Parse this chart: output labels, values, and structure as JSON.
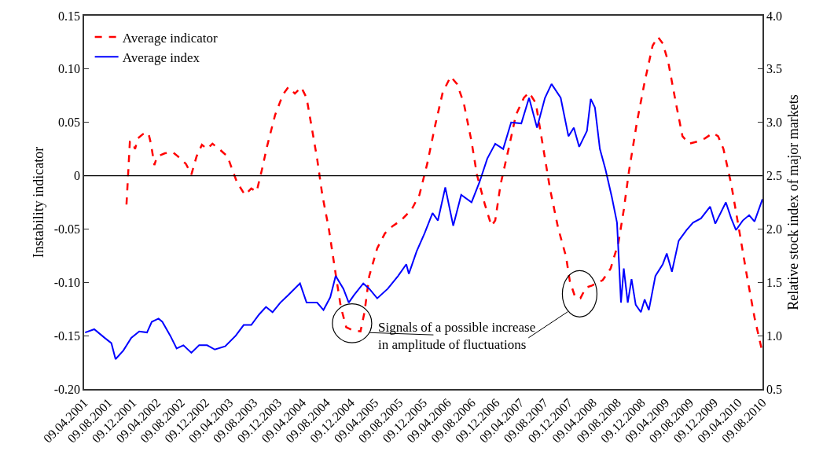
{
  "chart_data": {
    "type": "line",
    "xlabel": null,
    "ylabel": "Instability indicator",
    "y2label": "Relative stock index of major markets",
    "legend": "top left",
    "marker": "none",
    "xlim": [
      "2001-04-09",
      "2010-08-09"
    ],
    "ylim": [
      -0.2,
      0.15
    ],
    "y2lim": [
      0.5,
      4.0
    ],
    "yticks": [
      {
        "value": -0.2,
        "label": "-0.20"
      },
      {
        "value": -0.15,
        "label": "-0.15"
      },
      {
        "value": -0.1,
        "label": "-0.10"
      },
      {
        "value": -0.05,
        "label": "-0.05"
      },
      0,
      {
        "value": 0.05,
        "label": "0.05"
      },
      {
        "value": 0.1,
        "label": "0.10"
      },
      {
        "value": 0.15,
        "label": "0.15"
      }
    ],
    "y2ticks": [
      0.5,
      {
        "value": 1,
        "label": "1.0"
      },
      1.5,
      {
        "value": 2,
        "label": "2.0"
      },
      2.5,
      {
        "value": 3,
        "label": "3.0"
      },
      3.5,
      {
        "value": 4,
        "label": "4.0"
      }
    ],
    "xticks": [
      {
        "value": "2001-04-09",
        "label": "09.04.2001"
      },
      {
        "value": "2001-08-09",
        "label": "09.08.2001"
      },
      {
        "value": "2001-12-09",
        "label": "09.12.2001"
      },
      {
        "value": "2002-04-09",
        "label": "09.04.2002"
      },
      {
        "value": "2002-08-09",
        "label": "09.08.2002"
      },
      {
        "value": "2002-12-09",
        "label": "09.12.2002"
      },
      {
        "value": "2003-04-09",
        "label": "09.04.2003"
      },
      {
        "value": "2003-08-09",
        "label": "09.08.2003"
      },
      {
        "value": "2003-12-09",
        "label": "09.12.2003"
      },
      {
        "value": "2004-04-09",
        "label": "09.04.2004"
      },
      {
        "value": "2004-08-09",
        "label": "09.08.2004"
      },
      {
        "value": "2004-12-09",
        "label": "09.12.2004"
      },
      {
        "value": "2005-04-09",
        "label": "09.04.2005"
      },
      {
        "value": "2005-08-09",
        "label": "09.08.2005"
      },
      {
        "value": "2005-12-09",
        "label": "09.12.2005"
      },
      {
        "value": "2006-04-09",
        "label": "09.04.2006"
      },
      {
        "value": "2006-08-09",
        "label": "09.08.2006"
      },
      {
        "value": "2006-12-09",
        "label": "09.12.2006"
      },
      {
        "value": "2007-04-09",
        "label": "09.04.2007"
      },
      {
        "value": "2007-08-09",
        "label": "09.08.2007"
      },
      {
        "value": "2007-12-09",
        "label": "09.12.2007"
      },
      {
        "value": "2008-04-09",
        "label": "09.04.2008"
      },
      {
        "value": "2008-08-09",
        "label": "09.08.2008"
      },
      {
        "value": "2008-12-09",
        "label": "09.12.2008"
      },
      {
        "value": "2009-04-09",
        "label": "09.04.2009"
      },
      {
        "value": "2009-08-09",
        "label": "09.08.2009"
      },
      {
        "value": "2009-12-09",
        "label": "09.12.2009"
      },
      {
        "value": "2010-04-09",
        "label": "09.04.2010"
      },
      {
        "value": "2010-08-09",
        "label": "09.08.2010"
      }
    ],
    "ref_lines": [
      {
        "axis": "y",
        "value": 0,
        "color": "#000000",
        "line_style": "solid"
      }
    ],
    "annotations": [
      "Signals of a possible increase\nin amplitude of fluctuations"
    ],
    "series": [
      {
        "name": "Average indicator",
        "color": "#ff0000",
        "line_style": "dashed",
        "axis": "y",
        "x": [
          "2001-11-08",
          "2001-11-25",
          "2001-12-08",
          "2001-12-21",
          "2002-01-04",
          "2002-01-30",
          "2002-02-26",
          "2002-03-11",
          "2002-03-28",
          "2002-04-11",
          "2002-05-20",
          "2002-06-29",
          "2002-07-25",
          "2002-09-03",
          "2002-09-30",
          "2002-10-26",
          "2002-11-22",
          "2002-12-18",
          "2003-01-14",
          "2003-02-23",
          "2003-03-31",
          "2003-04-21",
          "2003-05-17",
          "2003-06-26",
          "2003-07-28",
          "2003-08-24",
          "2003-09-20",
          "2003-10-16",
          "2003-11-25",
          "2004-01-03",
          "2004-01-30",
          "2004-03-03",
          "2004-04-04",
          "2004-05-01",
          "2004-05-27",
          "2004-06-23",
          "2004-07-19",
          "2004-08-21",
          "2004-09-24",
          "2004-10-20",
          "2004-11-16",
          "2004-12-18",
          "2005-01-27",
          "2005-02-16",
          "2005-03-12",
          "2005-04-21",
          "2005-05-30",
          "2005-07-09",
          "2005-08-18",
          "2005-10-10",
          "2005-11-19",
          "2005-12-28",
          "2006-02-06",
          "2006-03-16",
          "2006-04-25",
          "2006-05-27",
          "2006-06-30",
          "2006-08-08",
          "2006-09-04",
          "2006-10-14",
          "2006-11-16",
          "2006-12-05",
          "2007-01-01",
          "2007-02-10",
          "2007-03-19",
          "2007-04-28",
          "2007-05-24",
          "2007-06-27",
          "2007-07-29",
          "2007-09-07",
          "2007-10-17",
          "2007-11-26",
          "2007-12-15",
          "2008-01-11",
          "2008-02-06",
          "2008-03-04",
          "2008-04-04",
          "2008-05-28",
          "2008-07-07",
          "2008-08-15",
          "2008-09-11",
          "2008-10-07",
          "2008-11-16",
          "2008-12-25",
          "2009-02-03",
          "2009-03-02",
          "2009-03-26",
          "2009-04-22",
          "2009-05-31",
          "2009-07-03",
          "2009-08-05",
          "2009-09-15",
          "2009-10-24",
          "2009-12-03",
          "2009-12-29",
          "2010-01-25",
          "2010-03-05",
          "2010-04-12",
          "2010-05-21",
          "2010-06-30",
          "2010-08-09"
        ],
        "values": [
          -0.027,
          0.032,
          0.032,
          0.025,
          0.035,
          0.039,
          0.04,
          0.03,
          0.01,
          0.018,
          0.021,
          0.022,
          0.018,
          0.011,
          0.001,
          0.018,
          0.029,
          0.025,
          0.03,
          0.024,
          0.018,
          0.007,
          -0.006,
          -0.018,
          -0.012,
          -0.015,
          0.006,
          0.028,
          0.057,
          0.076,
          0.083,
          0.077,
          0.083,
          0.073,
          0.045,
          0.016,
          -0.018,
          -0.05,
          -0.092,
          -0.123,
          -0.142,
          -0.145,
          -0.146,
          -0.128,
          -0.094,
          -0.068,
          -0.054,
          -0.047,
          -0.042,
          -0.032,
          -0.018,
          0.011,
          0.047,
          0.078,
          0.093,
          0.086,
          0.068,
          0.032,
          0.001,
          -0.027,
          -0.047,
          -0.042,
          -0.008,
          0.025,
          0.057,
          0.073,
          0.078,
          0.068,
          0.032,
          -0.013,
          -0.049,
          -0.076,
          -0.099,
          -0.114,
          -0.115,
          -0.105,
          -0.103,
          -0.098,
          -0.087,
          -0.063,
          -0.032,
          0.004,
          0.05,
          0.088,
          0.122,
          0.13,
          0.124,
          0.107,
          0.068,
          0.037,
          0.03,
          0.032,
          0.035,
          0.04,
          0.037,
          0.025,
          -0.008,
          -0.049,
          -0.092,
          -0.133,
          -0.166
        ]
      },
      {
        "name": "Average index",
        "color": "#0000ff",
        "line_style": "solid",
        "axis": "y2",
        "x": [
          "2001-04-14",
          "2001-05-30",
          "2001-07-21",
          "2001-08-24",
          "2001-09-14",
          "2001-10-23",
          "2001-12-02",
          "2002-01-11",
          "2002-02-19",
          "2002-03-15",
          "2002-04-18",
          "2002-05-07",
          "2002-06-16",
          "2002-07-18",
          "2002-08-21",
          "2002-09-30",
          "2002-11-08",
          "2002-12-18",
          "2003-01-26",
          "2003-03-19",
          "2003-05-11",
          "2003-06-20",
          "2003-07-28",
          "2003-09-06",
          "2003-10-10",
          "2003-11-12",
          "2003-12-21",
          "2004-01-30",
          "2004-03-29",
          "2004-05-01",
          "2004-06-23",
          "2004-07-25",
          "2004-08-28",
          "2004-09-24",
          "2004-11-02",
          "2004-11-29",
          "2004-12-25",
          "2005-02-10",
          "2005-03-12",
          "2005-04-21",
          "2005-06-13",
          "2005-08-04",
          "2005-09-14",
          "2005-09-27",
          "2005-11-05",
          "2005-12-15",
          "2006-01-24",
          "2006-02-20",
          "2006-03-29",
          "2006-05-08",
          "2006-06-17",
          "2006-08-08",
          "2006-09-17",
          "2006-10-26",
          "2006-12-05",
          "2007-01-14",
          "2007-02-23",
          "2007-04-15",
          "2007-05-24",
          "2007-07-03",
          "2007-08-12",
          "2007-09-14",
          "2007-10-30",
          "2007-12-08",
          "2008-01-04",
          "2008-01-31",
          "2008-03-10",
          "2008-03-29",
          "2008-04-19",
          "2008-05-14",
          "2008-06-11",
          "2008-07-13",
          "2008-08-08",
          "2008-08-28",
          "2008-09-11",
          "2008-10-01",
          "2008-10-20",
          "2008-11-10",
          "2008-12-06",
          "2008-12-25",
          "2009-01-15",
          "2009-02-17",
          "2009-03-26",
          "2009-04-15",
          "2009-05-11",
          "2009-06-14",
          "2009-07-23",
          "2009-08-25",
          "2009-10-04",
          "2009-11-19",
          "2009-12-15",
          "2010-02-06",
          "2010-03-05",
          "2010-03-29",
          "2010-05-02",
          "2010-06-03",
          "2010-06-30",
          "2010-08-09"
        ],
        "values": [
          1.03,
          1.06,
          0.98,
          0.93,
          0.78,
          0.86,
          0.98,
          1.04,
          1.03,
          1.13,
          1.16,
          1.13,
          1.0,
          0.88,
          0.91,
          0.84,
          0.91,
          0.91,
          0.87,
          0.9,
          1.0,
          1.1,
          1.1,
          1.2,
          1.27,
          1.22,
          1.31,
          1.38,
          1.49,
          1.31,
          1.31,
          1.24,
          1.36,
          1.56,
          1.44,
          1.31,
          1.38,
          1.49,
          1.44,
          1.35,
          1.44,
          1.56,
          1.67,
          1.58,
          1.79,
          1.96,
          2.15,
          2.08,
          2.39,
          2.03,
          2.32,
          2.25,
          2.44,
          2.66,
          2.8,
          2.75,
          3.0,
          2.99,
          3.23,
          2.95,
          3.23,
          3.36,
          3.23,
          2.87,
          2.95,
          2.77,
          2.92,
          3.22,
          3.14,
          2.75,
          2.56,
          2.3,
          2.06,
          1.31,
          1.63,
          1.31,
          1.53,
          1.29,
          1.22,
          1.34,
          1.24,
          1.56,
          1.67,
          1.77,
          1.6,
          1.89,
          1.99,
          2.06,
          2.1,
          2.21,
          2.05,
          2.25,
          2.1,
          1.99,
          2.08,
          2.13,
          2.07,
          2.28
        ]
      }
    ]
  }
}
